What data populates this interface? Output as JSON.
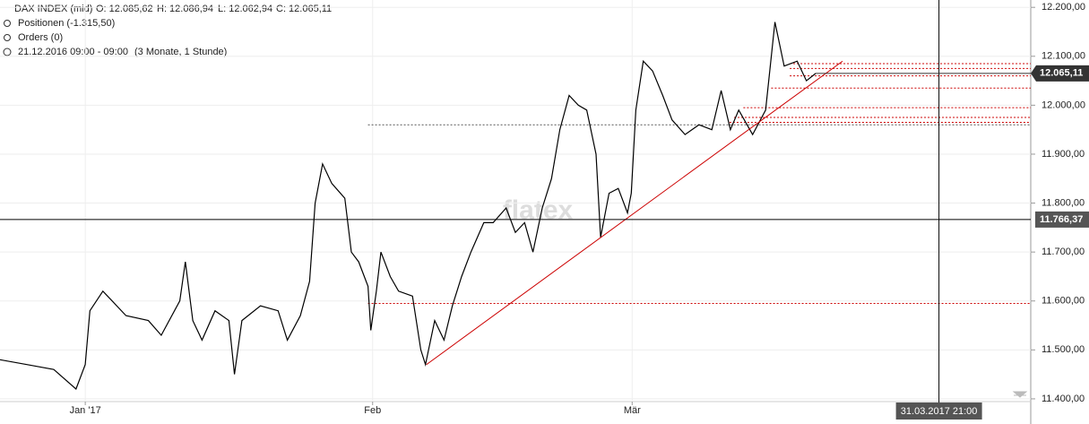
{
  "chart_data": {
    "type": "line",
    "header": [
      "DAX INDEX (mid)",
      "O: 12.085,62",
      "H: 12.086,94",
      "L: 12.062,94",
      "C: 12.065,11"
    ],
    "positions": "Positionen (-1.315,50)",
    "orders": "Orders (0)",
    "period": "21.12.2016 09:00 - 09:00",
    "range": "(3 Monate, 1 Stunde)",
    "watermark": "flatex",
    "x": [
      1.8,
      4.7,
      7.6,
      10.0,
      11.0,
      11.5,
      12.9,
      15.4,
      17.8,
      19.2,
      21.2,
      21.8,
      22.6,
      23.6,
      25.0,
      26.5,
      27.1,
      27.9,
      29.9,
      31.8,
      32.8,
      34.2,
      35.2,
      35.8,
      36.6,
      37.6,
      39.0,
      39.7,
      40.5,
      41.5,
      41.8,
      42.4,
      42.9,
      43.9,
      44.8,
      46.3,
      47.2,
      47.7,
      48.7,
      49.7,
      50.6,
      51.6,
      52.6,
      54.0,
      55.0,
      56.4,
      57.4,
      58.4,
      59.3,
      60.3,
      61.3,
      62.2,
      63.2,
      64.2,
      65.1,
      66.1,
      66.6,
      67.5,
      68.5,
      69.5,
      69.9,
      70.4,
      71.2,
      72.2,
      73.3,
      74.3,
      75.7,
      77.2,
      78.6,
      79.6,
      80.6,
      81.5,
      83.0,
      84.4,
      85.4,
      86.4,
      87.8,
      88.8,
      89.8
    ],
    "series": [
      {
        "name": "DAX INDEX (mid)",
        "color": "#000000",
        "values": [
          11480,
          11470,
          11460,
          11420,
          11470,
          11580,
          11620,
          11570,
          11560,
          11530,
          11600,
          11680,
          11560,
          11520,
          11580,
          11560,
          11450,
          11560,
          11590,
          11580,
          11520,
          11570,
          11640,
          11800,
          11880,
          11840,
          11810,
          11700,
          11680,
          11630,
          11540,
          11620,
          11700,
          11650,
          11620,
          11610,
          11500,
          11470,
          11560,
          11520,
          11590,
          11650,
          11700,
          11760,
          11760,
          11790,
          11740,
          11760,
          11700,
          11790,
          11850,
          11950,
          12020,
          12000,
          11990,
          11900,
          11730,
          11820,
          11830,
          11780,
          11820,
          11990,
          12090,
          12070,
          12020,
          11970,
          11940,
          11960,
          11950,
          12030,
          11950,
          11990,
          11940,
          11990,
          12170,
          12080,
          12090,
          12050,
          12065
        ]
      }
    ],
    "trendline": {
      "x": [
        47.8,
        92.7
      ],
      "values": [
        11470,
        12090
      ],
      "color": "#cc0000"
    },
    "levels": [
      {
        "value": 11960,
        "from": 41.5,
        "color": "#555555"
      },
      {
        "value": 11595,
        "from": 41.5,
        "color": "#cc0000"
      },
      {
        "value": 12085,
        "from": 87.0,
        "color": "#cc0000"
      },
      {
        "value": 12075,
        "from": 87.0,
        "color": "#cc0000"
      },
      {
        "value": 12060,
        "from": 87.0,
        "color": "#cc0000"
      },
      {
        "value": 12035,
        "from": 85.0,
        "color": "#cc0000"
      },
      {
        "value": 11995,
        "from": 82.0,
        "color": "#cc0000"
      },
      {
        "value": 11975,
        "from": 81.0,
        "color": "#cc0000"
      },
      {
        "value": 11965,
        "from": 80.5,
        "color": "#cc0000"
      }
    ],
    "current_price": {
      "value": 12065.11,
      "label": "12.065,11"
    },
    "crosshair": {
      "y": {
        "value": 11766.37,
        "label": "11.766,37"
      },
      "x": {
        "value": 103.1,
        "label": "31.03.2017 21:00"
      }
    },
    "xlim": [
      1.8,
      113
    ],
    "xticks": [
      {
        "value": 11,
        "label": "Jan '17"
      },
      {
        "value": 42,
        "label": "Feb"
      },
      {
        "value": 70,
        "label": "Mär"
      }
    ],
    "ylim": [
      11355,
      12215
    ],
    "yticks": [
      {
        "value": 11400,
        "label": "11.400,00"
      },
      {
        "value": 11500,
        "label": "11.500,00"
      },
      {
        "value": 11600,
        "label": "11.600,00"
      },
      {
        "value": 11700,
        "label": "11.700,00"
      },
      {
        "value": 11800,
        "label": "11.800,00"
      },
      {
        "value": 11900,
        "label": "11.900,00"
      },
      {
        "value": 12000,
        "label": "12.000,00"
      },
      {
        "value": 12100,
        "label": "12.100,00"
      },
      {
        "value": 12200,
        "label": "12.200,00"
      }
    ],
    "grid": true
  }
}
